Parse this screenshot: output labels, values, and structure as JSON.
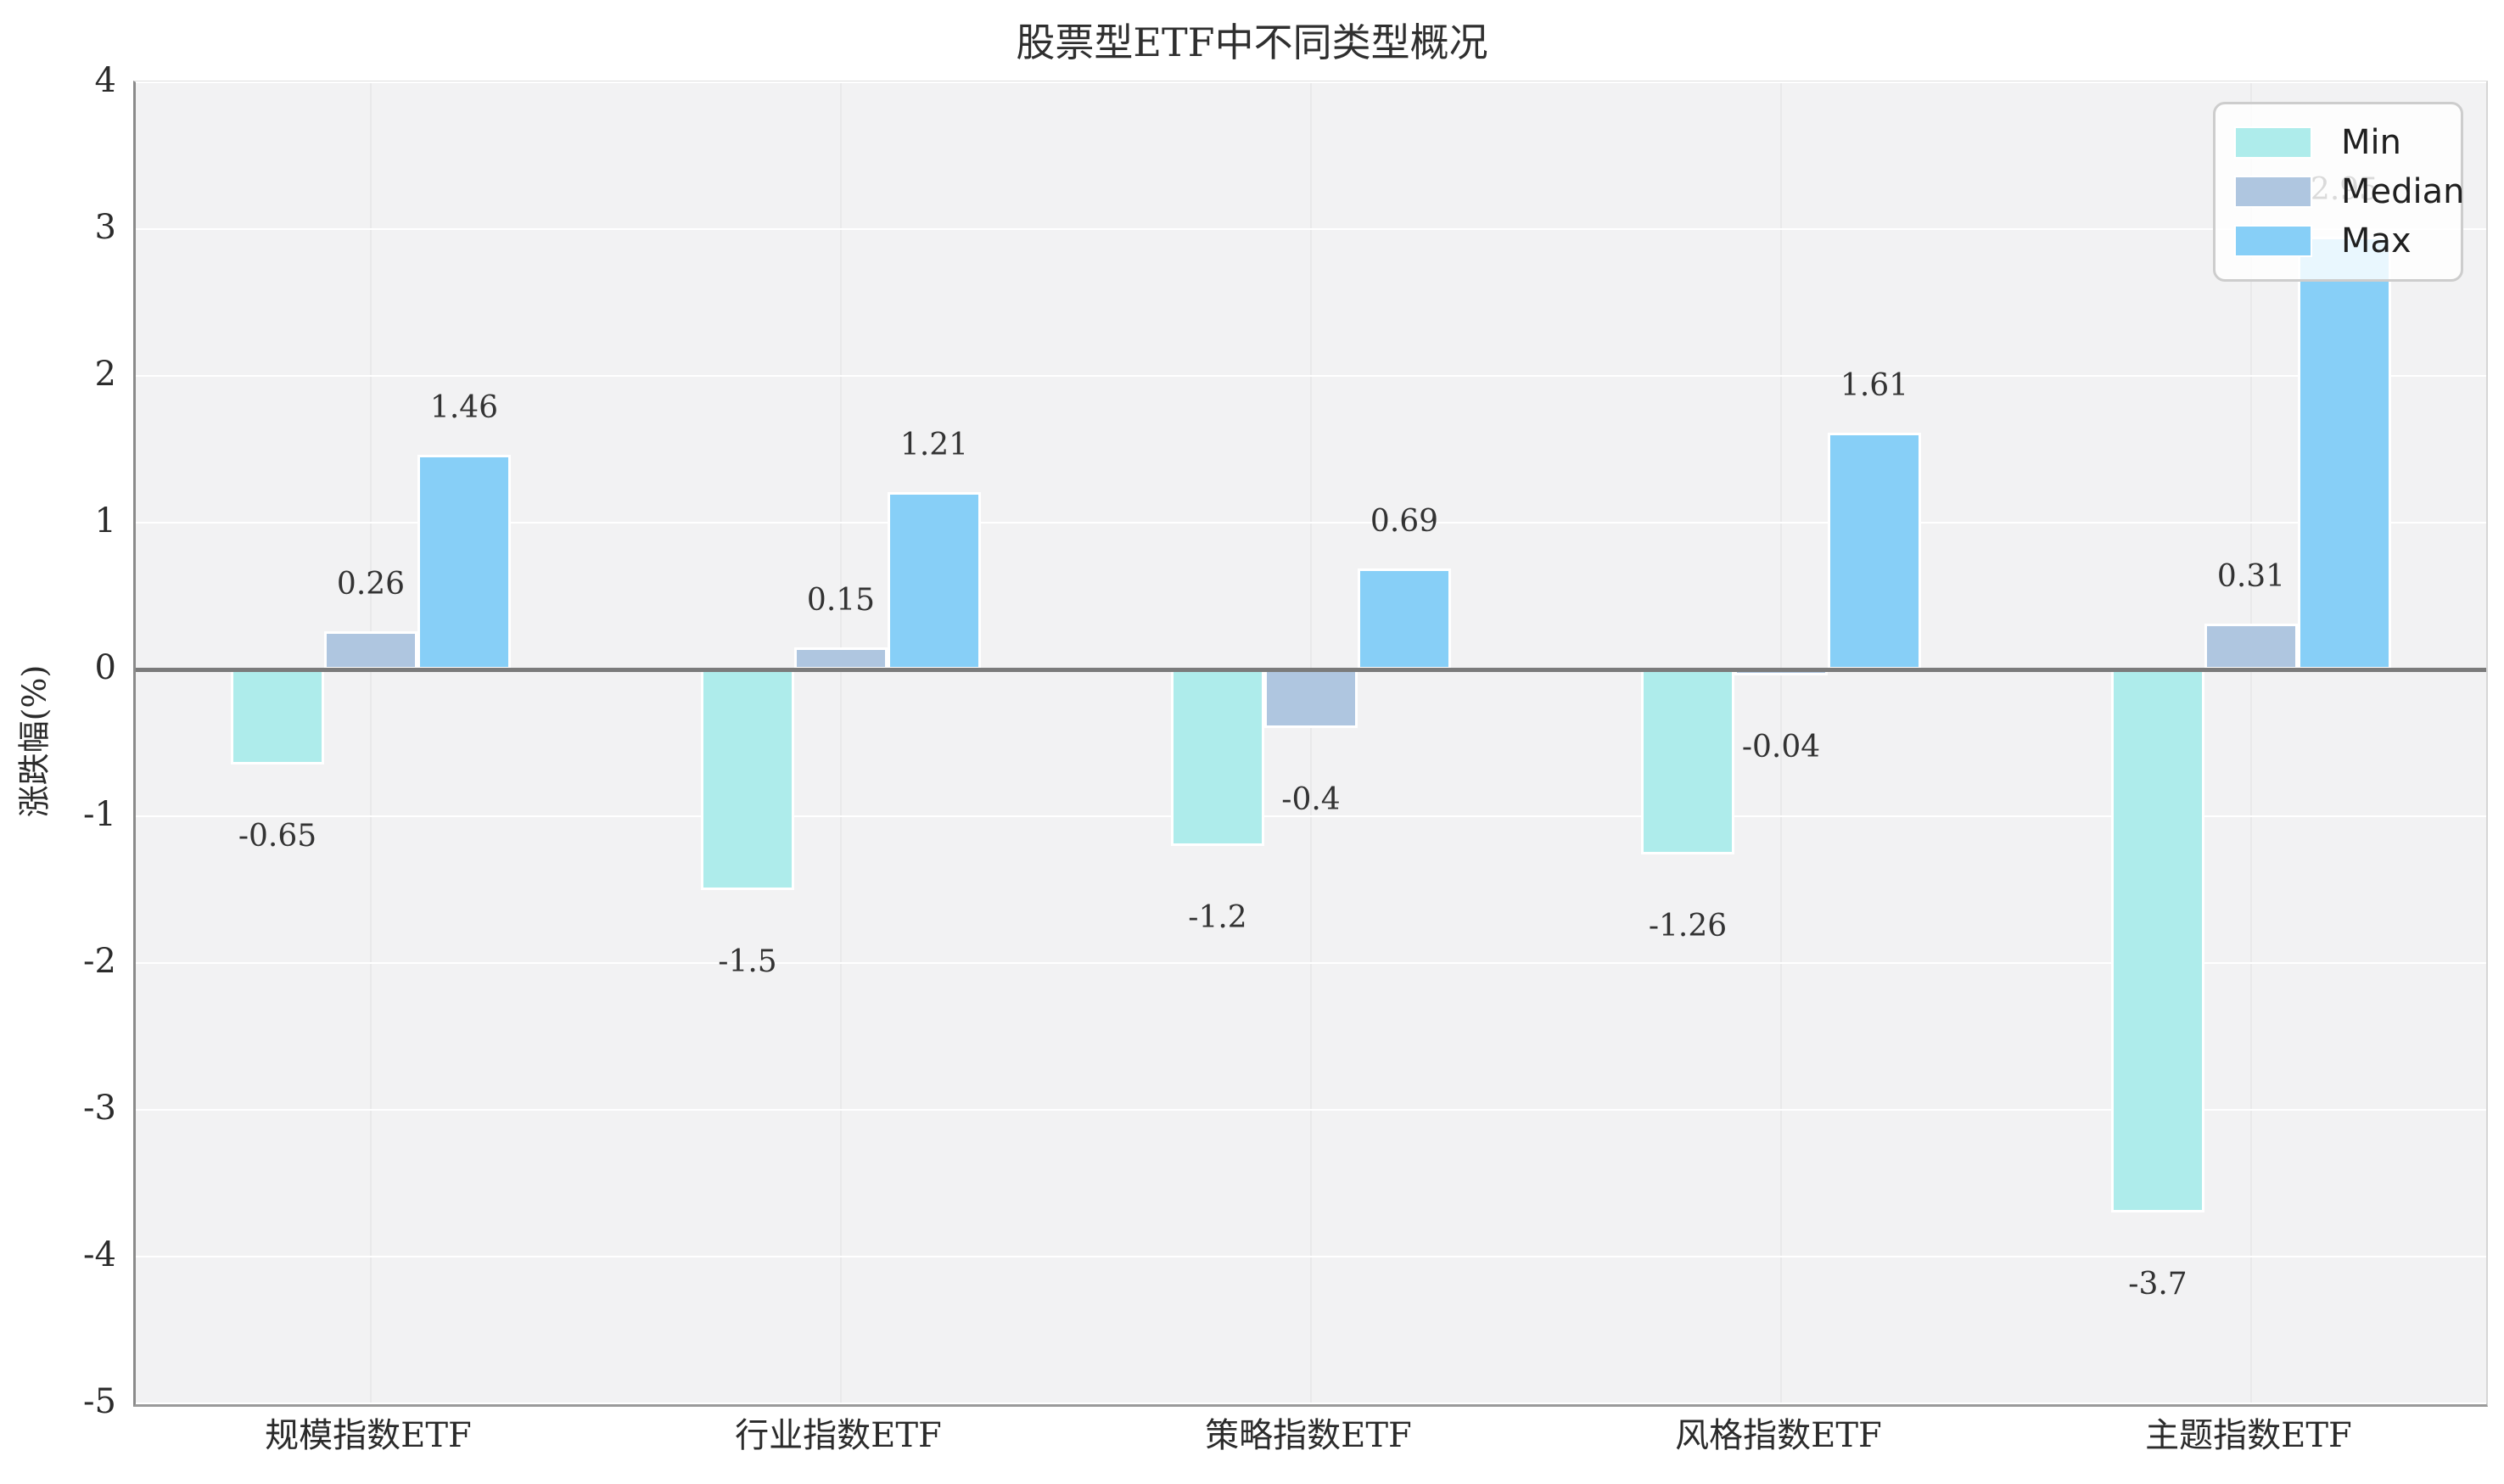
{
  "chart_data": {
    "type": "bar",
    "title": "股票型ETF中不同类型概况",
    "ylabel": "涨跌幅(%)",
    "xlabel": "",
    "categories": [
      "规模指数ETF",
      "行业指数ETF",
      "策略指数ETF",
      "风格指数ETF",
      "主题指数ETF"
    ],
    "series": [
      {
        "name": "Min",
        "color": "#aeeceb",
        "values": [
          -0.65,
          -1.5,
          -1.2,
          -1.26,
          -3.7
        ],
        "labels": [
          "-0.65",
          "-1.5",
          "-1.2",
          "-1.26",
          "-3.7"
        ]
      },
      {
        "name": "Median",
        "color": "#afc6e0",
        "values": [
          0.26,
          0.15,
          -0.4,
          -0.04,
          0.31
        ],
        "labels": [
          "0.26",
          "0.15",
          "-0.4",
          "-0.04",
          "0.31"
        ]
      },
      {
        "name": "Max",
        "color": "#87cff7",
        "values": [
          1.46,
          1.21,
          0.69,
          1.61,
          2.95
        ],
        "labels": [
          "1.46",
          "1.21",
          "0.69",
          "1.61",
          "2.95"
        ]
      }
    ],
    "ylim": [
      -5,
      4
    ],
    "yticks": [
      4,
      3,
      2,
      1,
      0,
      -1,
      -2,
      -3,
      -4,
      -5
    ],
    "grid": true,
    "zero_line": true,
    "legend_position": "top-right",
    "colors": {
      "plot_background": "#f2f2f3",
      "horizontal_grid": "#ffffff",
      "vertical_grid": "#e9e9ea",
      "zero_line": "#7b7b7b",
      "bar_edge": "#ffffff",
      "text": "#2b2b2b"
    }
  }
}
